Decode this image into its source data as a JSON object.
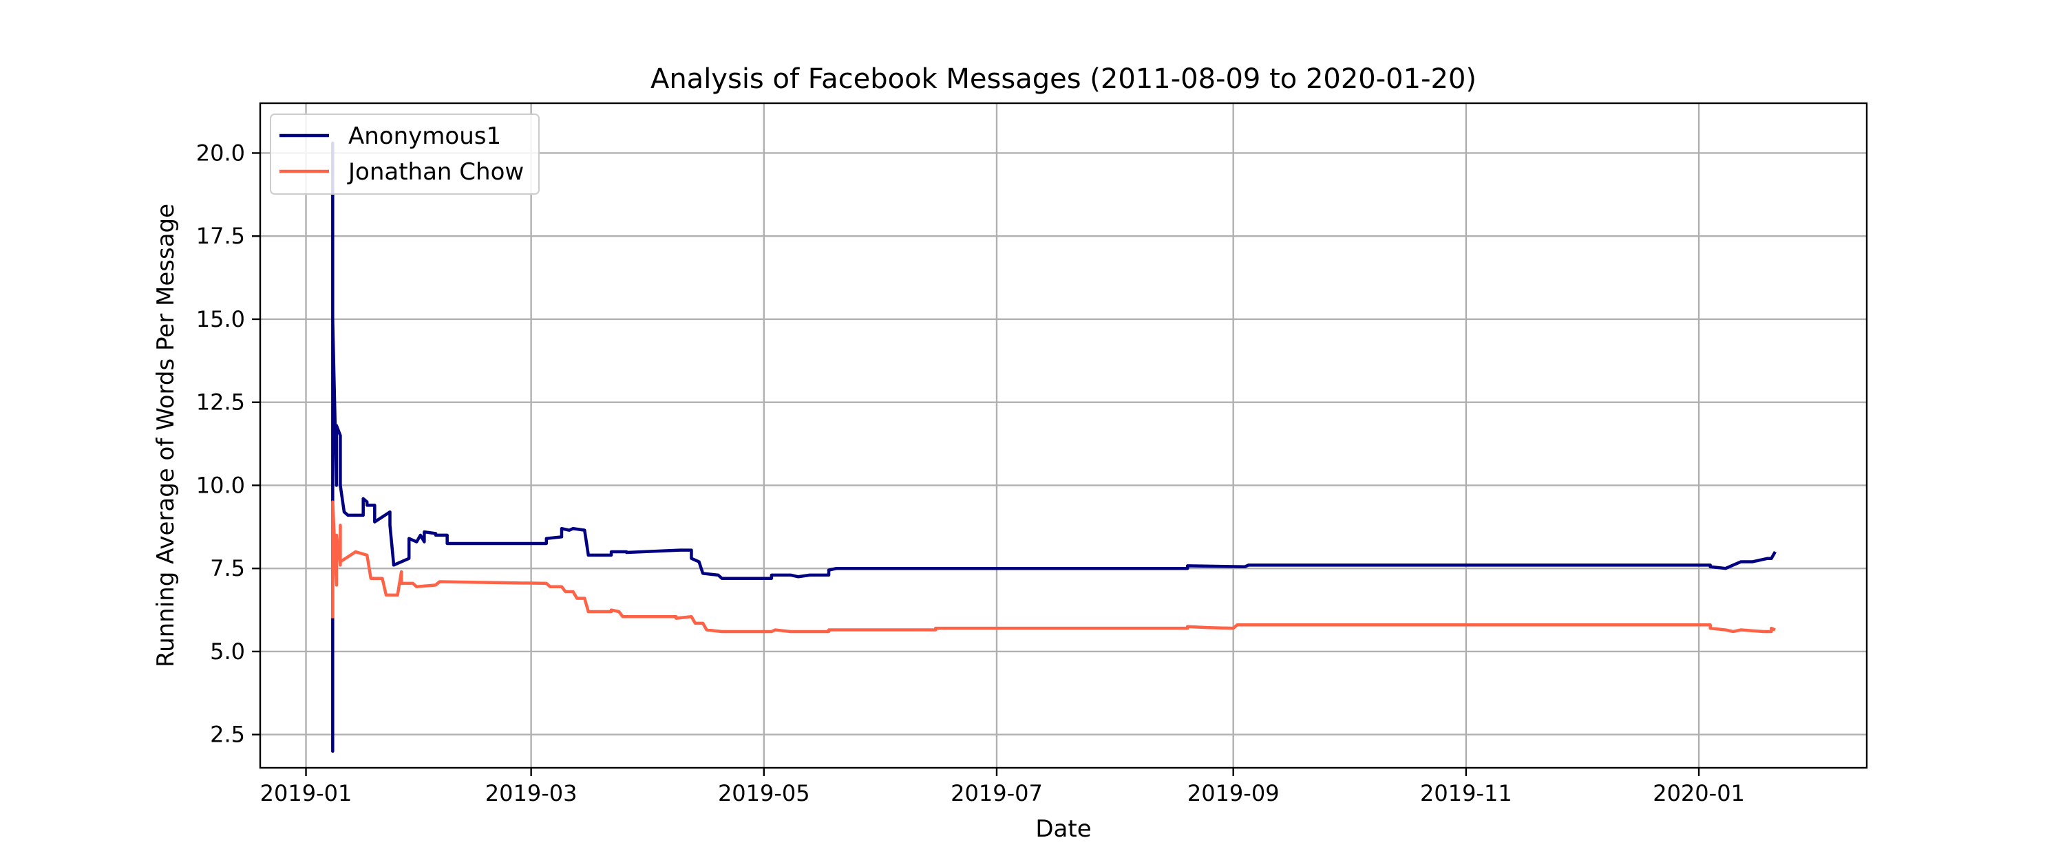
{
  "chart_data": {
    "type": "line",
    "title": "Analysis of Facebook Messages (2011-08-09 to 2020-01-20)",
    "xlabel": "Date",
    "ylabel": "Running Average of Words Per Message",
    "xlim": [
      "2018-12-20",
      "2020-02-14"
    ],
    "ylim": [
      1.5,
      21.5
    ],
    "x_ticks": [
      "2019-01",
      "2019-03",
      "2019-05",
      "2019-07",
      "2019-09",
      "2019-11",
      "2020-01"
    ],
    "y_ticks": [
      2.5,
      5.0,
      7.5,
      10.0,
      12.5,
      15.0,
      17.5,
      20.0
    ],
    "y_tick_labels": [
      "2.5",
      "5.0",
      "7.5",
      "10.0",
      "12.5",
      "15.0",
      "17.5",
      "20.0"
    ],
    "grid": true,
    "legend_position": "top-left",
    "colors": {
      "Anonymous1": "#000080",
      "Jonathan Chow": "#ff6347"
    },
    "series": [
      {
        "name": "Anonymous1",
        "color": "#000080",
        "points": [
          [
            "2019-01-08",
            6.0
          ],
          [
            "2019-01-08",
            2.0
          ],
          [
            "2019-01-08",
            20.3
          ],
          [
            "2019-01-08",
            15.0
          ],
          [
            "2019-01-09",
            10.0
          ],
          [
            "2019-01-09",
            11.8
          ],
          [
            "2019-01-10",
            11.5
          ],
          [
            "2019-01-10",
            10.0
          ],
          [
            "2019-01-11",
            9.2
          ],
          [
            "2019-01-12",
            9.1
          ],
          [
            "2019-01-16",
            9.1
          ],
          [
            "2019-01-16",
            9.6
          ],
          [
            "2019-01-17",
            9.5
          ],
          [
            "2019-01-17",
            9.4
          ],
          [
            "2019-01-19",
            9.4
          ],
          [
            "2019-01-19",
            8.9
          ],
          [
            "2019-01-23",
            9.2
          ],
          [
            "2019-01-23",
            8.8
          ],
          [
            "2019-01-24",
            7.6
          ],
          [
            "2019-01-28",
            7.8
          ],
          [
            "2019-01-28",
            8.4
          ],
          [
            "2019-01-30",
            8.3
          ],
          [
            "2019-01-31",
            8.5
          ],
          [
            "2019-02-01",
            8.3
          ],
          [
            "2019-02-01",
            8.6
          ],
          [
            "2019-02-04",
            8.55
          ],
          [
            "2019-02-04",
            8.5
          ],
          [
            "2019-02-07",
            8.5
          ],
          [
            "2019-02-07",
            8.25
          ],
          [
            "2019-03-05",
            8.25
          ],
          [
            "2019-03-05",
            8.4
          ],
          [
            "2019-03-09",
            8.45
          ],
          [
            "2019-03-09",
            8.7
          ],
          [
            "2019-03-11",
            8.65
          ],
          [
            "2019-03-12",
            8.7
          ],
          [
            "2019-03-15",
            8.65
          ],
          [
            "2019-03-16",
            7.9
          ],
          [
            "2019-03-22",
            7.9
          ],
          [
            "2019-03-22",
            8.0
          ],
          [
            "2019-03-26",
            8.0
          ],
          [
            "2019-03-26",
            7.98
          ],
          [
            "2019-04-09",
            8.05
          ],
          [
            "2019-04-12",
            8.05
          ],
          [
            "2019-04-12",
            7.8
          ],
          [
            "2019-04-14",
            7.7
          ],
          [
            "2019-04-15",
            7.35
          ],
          [
            "2019-04-19",
            7.3
          ],
          [
            "2019-04-20",
            7.2
          ],
          [
            "2019-05-03",
            7.2
          ],
          [
            "2019-05-03",
            7.3
          ],
          [
            "2019-05-08",
            7.3
          ],
          [
            "2019-05-10",
            7.25
          ],
          [
            "2019-05-13",
            7.3
          ],
          [
            "2019-05-18",
            7.3
          ],
          [
            "2019-05-18",
            7.45
          ],
          [
            "2019-05-20",
            7.5
          ],
          [
            "2019-06-15",
            7.5
          ],
          [
            "2019-08-20",
            7.5
          ],
          [
            "2019-08-20",
            7.58
          ],
          [
            "2019-09-04",
            7.55
          ],
          [
            "2019-09-05",
            7.6
          ],
          [
            "2020-01-04",
            7.6
          ],
          [
            "2020-01-04",
            7.55
          ],
          [
            "2020-01-08",
            7.5
          ],
          [
            "2020-01-10",
            7.6
          ],
          [
            "2020-01-12",
            7.7
          ],
          [
            "2020-01-15",
            7.7
          ],
          [
            "2020-01-19",
            7.8
          ],
          [
            "2020-01-20",
            7.8
          ],
          [
            "2020-01-21",
            8.0
          ]
        ]
      },
      {
        "name": "Jonathan Chow",
        "color": "#ff6347",
        "points": [
          [
            "2019-01-08",
            6.0
          ],
          [
            "2019-01-08",
            9.5
          ],
          [
            "2019-01-09",
            7.0
          ],
          [
            "2019-01-09",
            8.5
          ],
          [
            "2019-01-10",
            7.6
          ],
          [
            "2019-01-10",
            8.8
          ],
          [
            "2019-01-10",
            7.7
          ],
          [
            "2019-01-14",
            8.0
          ],
          [
            "2019-01-17",
            7.9
          ],
          [
            "2019-01-18",
            7.2
          ],
          [
            "2019-01-21",
            7.2
          ],
          [
            "2019-01-22",
            6.7
          ],
          [
            "2019-01-25",
            6.7
          ],
          [
            "2019-01-26",
            7.4
          ],
          [
            "2019-01-26",
            7.05
          ],
          [
            "2019-01-29",
            7.05
          ],
          [
            "2019-01-30",
            6.95
          ],
          [
            "2019-02-04",
            7.0
          ],
          [
            "2019-02-05",
            7.1
          ],
          [
            "2019-03-05",
            7.05
          ],
          [
            "2019-03-06",
            6.95
          ],
          [
            "2019-03-09",
            6.95
          ],
          [
            "2019-03-10",
            6.8
          ],
          [
            "2019-03-12",
            6.8
          ],
          [
            "2019-03-13",
            6.6
          ],
          [
            "2019-03-15",
            6.6
          ],
          [
            "2019-03-16",
            6.2
          ],
          [
            "2019-03-22",
            6.2
          ],
          [
            "2019-03-22",
            6.25
          ],
          [
            "2019-03-24",
            6.2
          ],
          [
            "2019-03-25",
            6.05
          ],
          [
            "2019-04-08",
            6.05
          ],
          [
            "2019-04-08",
            6.0
          ],
          [
            "2019-04-12",
            6.05
          ],
          [
            "2019-04-13",
            5.85
          ],
          [
            "2019-04-15",
            5.85
          ],
          [
            "2019-04-16",
            5.65
          ],
          [
            "2019-04-20",
            5.6
          ],
          [
            "2019-05-03",
            5.6
          ],
          [
            "2019-05-04",
            5.65
          ],
          [
            "2019-05-08",
            5.6
          ],
          [
            "2019-05-18",
            5.6
          ],
          [
            "2019-05-18",
            5.65
          ],
          [
            "2019-06-15",
            5.65
          ],
          [
            "2019-06-15",
            5.7
          ],
          [
            "2019-08-20",
            5.7
          ],
          [
            "2019-08-20",
            5.75
          ],
          [
            "2019-08-25",
            5.72
          ],
          [
            "2019-09-01",
            5.7
          ],
          [
            "2019-09-02",
            5.8
          ],
          [
            "2020-01-04",
            5.8
          ],
          [
            "2020-01-04",
            5.7
          ],
          [
            "2020-01-08",
            5.65
          ],
          [
            "2020-01-10",
            5.6
          ],
          [
            "2020-01-12",
            5.65
          ],
          [
            "2020-01-18",
            5.6
          ],
          [
            "2020-01-20",
            5.6
          ],
          [
            "2020-01-20",
            5.7
          ],
          [
            "2020-01-21",
            5.65
          ]
        ]
      }
    ]
  }
}
